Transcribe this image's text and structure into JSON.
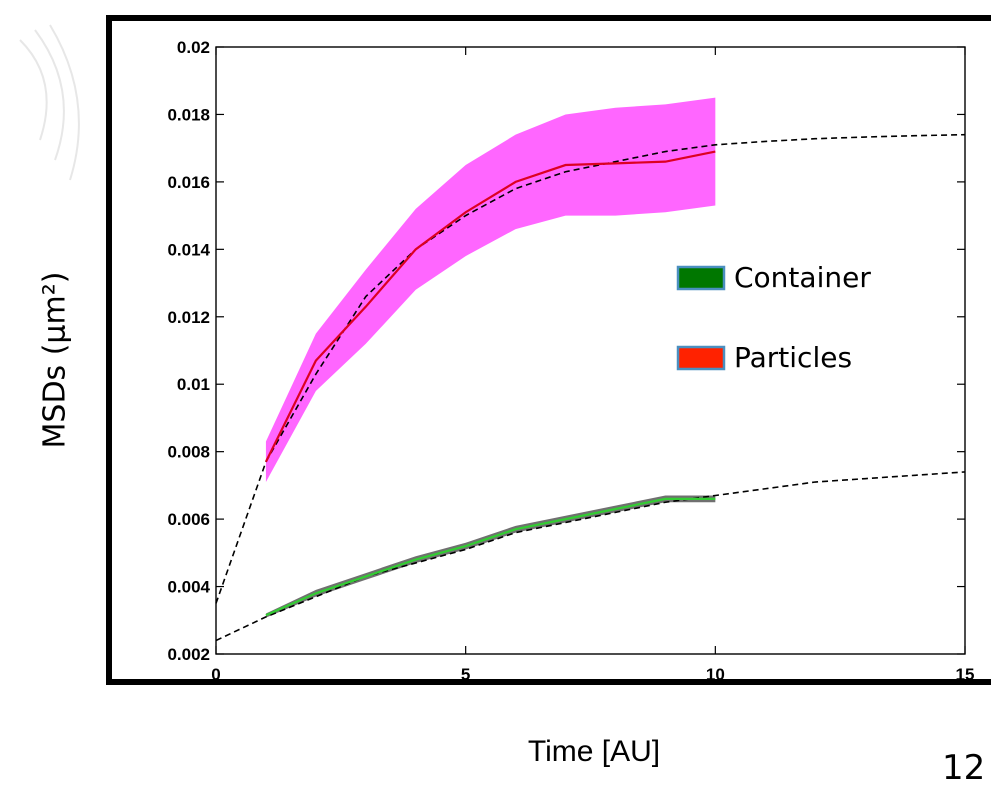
{
  "chart_data": {
    "type": "line",
    "title": "",
    "xlabel": "Time [AU]",
    "ylabel": "MSDs (μm²)",
    "xlim": [
      0,
      15
    ],
    "ylim": [
      0.002,
      0.02
    ],
    "xticks": [
      0,
      5,
      10,
      15
    ],
    "xtick_labels": [
      "0",
      "5",
      "10",
      "15"
    ],
    "yticks": [
      0.002,
      0.004,
      0.006,
      0.008,
      0.01,
      0.012,
      0.014,
      0.016,
      0.018,
      0.02
    ],
    "ytick_labels": [
      "0.002",
      "0.004",
      "0.006",
      "0.008",
      "0.01",
      "0.012",
      "0.014",
      "0.016",
      "0.018",
      "0.02"
    ],
    "legend_position": "right-middle",
    "grid": false,
    "series": [
      {
        "name": "Container",
        "color": "#33cc33",
        "band_color": "#707070",
        "x": [
          1,
          2,
          3,
          4,
          5,
          6,
          7,
          8,
          9,
          10
        ],
        "values": [
          0.00315,
          0.0038,
          0.0043,
          0.0048,
          0.0052,
          0.0057,
          0.006,
          0.0063,
          0.0066,
          0.0066
        ],
        "lower": [
          0.00308,
          0.0037,
          0.0042,
          0.0047,
          0.0051,
          0.0056,
          0.0059,
          0.0062,
          0.0065,
          0.0065
        ],
        "upper": [
          0.0032,
          0.0039,
          0.0044,
          0.0049,
          0.0053,
          0.0058,
          0.0061,
          0.0064,
          0.0067,
          0.0067
        ]
      },
      {
        "name": "Particles",
        "color": "#dd0022",
        "band_color": "#ff66ff",
        "x": [
          1,
          2,
          3,
          4,
          5,
          6,
          7,
          8,
          9,
          10
        ],
        "values": [
          0.0077,
          0.0107,
          0.0123,
          0.014,
          0.0151,
          0.016,
          0.0165,
          0.01655,
          0.0166,
          0.0169
        ],
        "lower": [
          0.0071,
          0.0098,
          0.0112,
          0.0128,
          0.0138,
          0.0146,
          0.015,
          0.015,
          0.0151,
          0.0153
        ],
        "upper": [
          0.0083,
          0.0115,
          0.0134,
          0.0152,
          0.0165,
          0.0174,
          0.018,
          0.0182,
          0.0183,
          0.0185
        ]
      }
    ],
    "fits": [
      {
        "color": "#000000",
        "x": [
          0,
          1,
          2,
          3,
          4,
          5,
          6,
          7,
          8,
          9,
          10,
          11,
          12,
          13,
          14,
          15
        ],
        "values": [
          0.0035,
          0.0077,
          0.0103,
          0.0126,
          0.014,
          0.015,
          0.0158,
          0.0163,
          0.0166,
          0.0169,
          0.0171,
          0.0172,
          0.01728,
          0.01733,
          0.01737,
          0.0174
        ]
      },
      {
        "color": "#000000",
        "x": [
          0,
          1,
          2,
          3,
          4,
          5,
          6,
          7,
          8,
          9,
          10,
          11,
          12,
          13,
          14,
          15
        ],
        "values": [
          0.0024,
          0.0031,
          0.0037,
          0.0043,
          0.0047,
          0.0051,
          0.0056,
          0.0059,
          0.0062,
          0.0065,
          0.0067,
          0.0069,
          0.0071,
          0.0072,
          0.0073,
          0.0074
        ]
      }
    ],
    "legend": [
      {
        "label": "Container",
        "color": "#007700"
      },
      {
        "label": "Particles",
        "color": "#ff2200"
      }
    ]
  },
  "page_number": "12"
}
